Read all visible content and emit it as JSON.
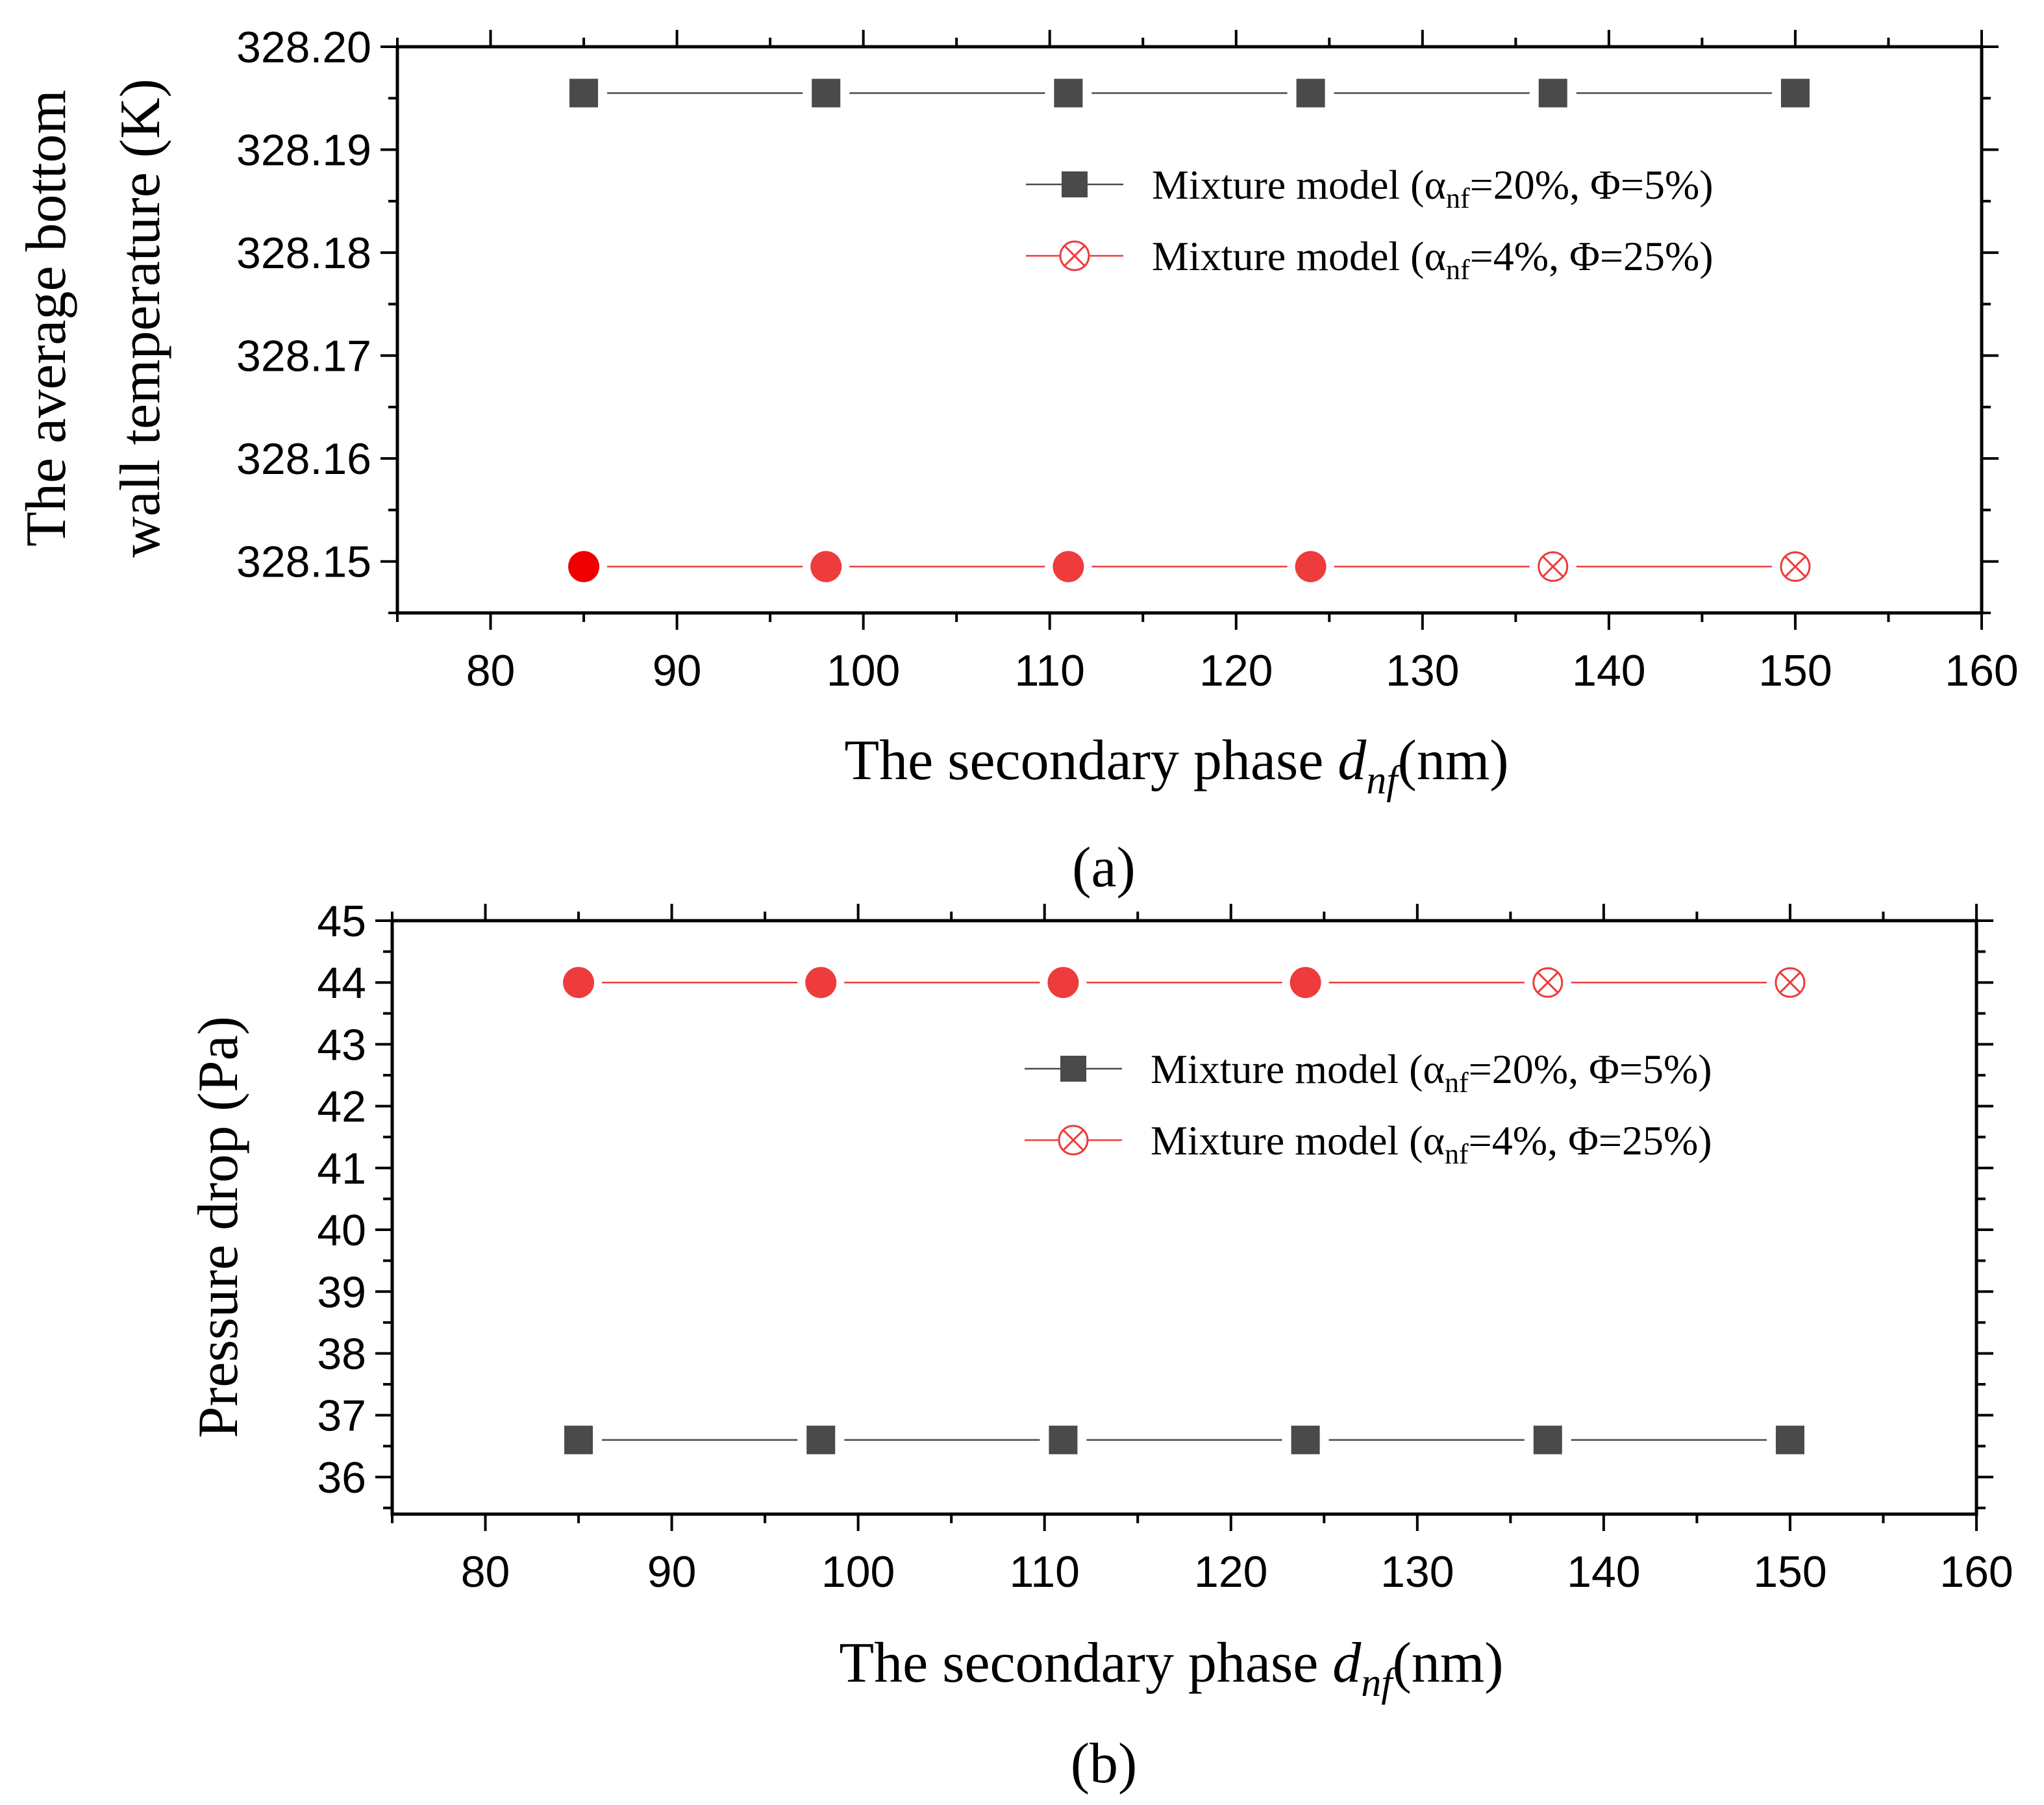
{
  "chart_data": [
    {
      "id": "a",
      "type": "line",
      "caption": "(a)",
      "ylabel_lines": [
        "The average bottom",
        "wall temperature (K)"
      ],
      "xlabel": {
        "prefix": "The secondary phase ",
        "var": "d",
        "sub": "nf",
        "suffix": "(nm)"
      },
      "xlim": [
        75,
        160
      ],
      "ylim": [
        328.145,
        328.2
      ],
      "xticks": [
        80,
        90,
        100,
        110,
        120,
        130,
        140,
        150,
        160
      ],
      "yticks": [
        328.15,
        328.16,
        328.17,
        328.18,
        328.19,
        328.2
      ],
      "ytick_labels": [
        "328.15",
        "328.16",
        "328.17",
        "328.18",
        "328.19",
        "328.20"
      ],
      "x": [
        85,
        98,
        111,
        124,
        137,
        150
      ],
      "series": [
        {
          "name": "Mixture model (αnf=20%, Φ=5%)",
          "legend": {
            "pre": "Mixture model (α",
            "sub": "nf",
            "post": "=20%, Φ=5%)"
          },
          "marker": "square",
          "color": "#4a4a4a",
          "values": [
            328.1955,
            328.1955,
            328.1955,
            328.1955,
            328.1955,
            328.1955
          ]
        },
        {
          "name": "Mixture model (αnf=4%, Φ=25%)",
          "legend": {
            "pre": "Mixture model (α",
            "sub": "nf",
            "post": "=4%, Φ=25%)"
          },
          "marker": "circle-x",
          "color": "#ee3b3b",
          "values": [
            328.1495,
            328.1495,
            328.1495,
            328.1495,
            328.1495,
            328.1495
          ],
          "marker_styles": [
            "filled",
            "filled",
            "filled",
            "filled",
            "crossed",
            "crossed"
          ]
        }
      ],
      "legend_position": "top-right"
    },
    {
      "id": "b",
      "type": "line",
      "caption": "(b)",
      "ylabel_lines": [
        "Pressure drop (Pa)"
      ],
      "xlabel": {
        "prefix": "The secondary phase ",
        "var": "d",
        "sub": "nf",
        "suffix": "(nm)"
      },
      "xlim": [
        75,
        160
      ],
      "ylim": [
        35.4,
        45
      ],
      "xticks": [
        80,
        90,
        100,
        110,
        120,
        130,
        140,
        150,
        160
      ],
      "yticks": [
        36,
        37,
        38,
        39,
        40,
        41,
        42,
        43,
        44,
        45
      ],
      "ytick_labels": [
        "36",
        "37",
        "38",
        "39",
        "40",
        "41",
        "42",
        "43",
        "44",
        "45"
      ],
      "x": [
        85,
        98,
        111,
        124,
        137,
        150
      ],
      "series": [
        {
          "name": "Mixture model (αnf=20%, Φ=5%)",
          "legend": {
            "pre": "Mixture model (α",
            "sub": "nf",
            "post": "=20%, Φ=5%)"
          },
          "marker": "square",
          "color": "#4a4a4a",
          "values": [
            36.6,
            36.6,
            36.6,
            36.6,
            36.6,
            36.6
          ]
        },
        {
          "name": "Mixture model (αnf=4%, Φ=25%)",
          "legend": {
            "pre": "Mixture model (α",
            "sub": "nf",
            "post": "=4%, Φ=25%)"
          },
          "marker": "circle-x",
          "color": "#ee3b3b",
          "values": [
            44.0,
            44.0,
            44.0,
            44.0,
            44.0,
            44.0
          ],
          "marker_styles": [
            "filled",
            "filled",
            "filled",
            "filled",
            "crossed",
            "crossed"
          ]
        }
      ],
      "legend_position": "top-right"
    }
  ]
}
